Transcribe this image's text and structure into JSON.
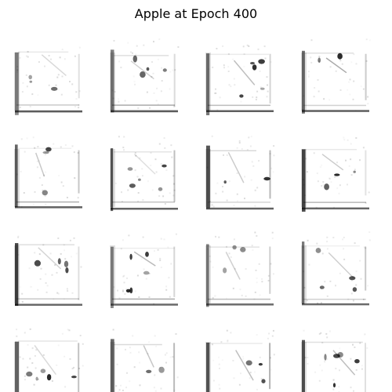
{
  "figure": {
    "title": "Apple at Epoch 400",
    "rows": 4,
    "cols": 4,
    "background_color": "#ffffff",
    "ink_color": "#000000",
    "samples": [
      {
        "row": 0,
        "col": 0,
        "depicts": "generated-sketch"
      },
      {
        "row": 0,
        "col": 1,
        "depicts": "generated-sketch"
      },
      {
        "row": 0,
        "col": 2,
        "depicts": "generated-sketch"
      },
      {
        "row": 0,
        "col": 3,
        "depicts": "generated-sketch"
      },
      {
        "row": 1,
        "col": 0,
        "depicts": "generated-sketch"
      },
      {
        "row": 1,
        "col": 1,
        "depicts": "generated-sketch"
      },
      {
        "row": 1,
        "col": 2,
        "depicts": "generated-sketch"
      },
      {
        "row": 1,
        "col": 3,
        "depicts": "generated-sketch"
      },
      {
        "row": 2,
        "col": 0,
        "depicts": "generated-sketch"
      },
      {
        "row": 2,
        "col": 1,
        "depicts": "generated-sketch"
      },
      {
        "row": 2,
        "col": 2,
        "depicts": "generated-sketch"
      },
      {
        "row": 2,
        "col": 3,
        "depicts": "generated-sketch"
      },
      {
        "row": 3,
        "col": 0,
        "depicts": "generated-sketch"
      },
      {
        "row": 3,
        "col": 1,
        "depicts": "generated-sketch"
      },
      {
        "row": 3,
        "col": 2,
        "depicts": "generated-sketch"
      },
      {
        "row": 3,
        "col": 3,
        "depicts": "generated-sketch"
      }
    ]
  }
}
